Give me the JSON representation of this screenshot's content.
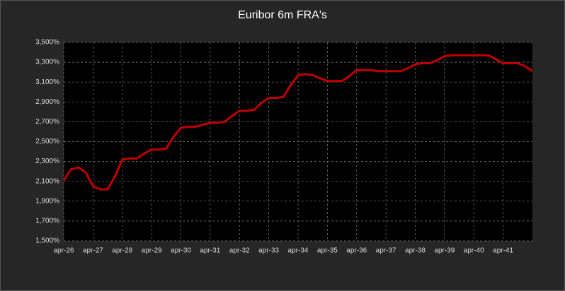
{
  "chart_data": {
    "type": "line",
    "title": "Euribor 6m FRA's",
    "categories": [
      "apr-26",
      null,
      null,
      null,
      "apr-27",
      null,
      null,
      null,
      "apr-28",
      null,
      null,
      null,
      "apr-29",
      null,
      null,
      null,
      "apr-30",
      null,
      null,
      null,
      "apr-31",
      null,
      null,
      null,
      "apr-32",
      null,
      null,
      null,
      "apr-33",
      null,
      null,
      null,
      "apr-34",
      null,
      null,
      null,
      "apr-35",
      null,
      null,
      null,
      "apr-36",
      null,
      null,
      null,
      "apr-37",
      null,
      null,
      null,
      "apr-38",
      null,
      null,
      null,
      "apr-39",
      null,
      null,
      null,
      "apr-40",
      null,
      null,
      null,
      "apr-41",
      null,
      null,
      null,
      null
    ],
    "values": [
      2.11,
      2.22,
      2.24,
      2.19,
      2.05,
      2.02,
      2.02,
      2.15,
      2.32,
      2.33,
      2.33,
      2.38,
      2.42,
      2.42,
      2.43,
      2.55,
      2.64,
      2.65,
      2.65,
      2.67,
      2.69,
      2.69,
      2.7,
      2.76,
      2.81,
      2.81,
      2.82,
      2.89,
      2.94,
      2.94,
      2.95,
      3.07,
      3.17,
      3.18,
      3.17,
      3.14,
      3.11,
      3.11,
      3.11,
      3.16,
      3.22,
      3.22,
      3.22,
      3.21,
      3.21,
      3.21,
      3.21,
      3.24,
      3.28,
      3.29,
      3.29,
      3.32,
      3.36,
      3.37,
      3.37,
      3.37,
      3.37,
      3.37,
      3.37,
      3.33,
      3.29,
      3.29,
      3.29,
      3.26,
      3.21
    ],
    "color": "#c00000",
    "ylim": [
      1.5,
      3.5
    ],
    "yticks": [
      {
        "value": 1.5,
        "label": "1,500%"
      },
      {
        "value": 1.7,
        "label": "1,700%"
      },
      {
        "value": 1.9,
        "label": "1,900%"
      },
      {
        "value": 2.1,
        "label": "2,100%"
      },
      {
        "value": 2.3,
        "label": "2,300%"
      },
      {
        "value": 2.5,
        "label": "2,500%"
      },
      {
        "value": 2.7,
        "label": "2,700%"
      },
      {
        "value": 2.9,
        "label": "2,900%"
      },
      {
        "value": 3.1,
        "label": "3,100%"
      },
      {
        "value": 3.3,
        "label": "3,300%"
      },
      {
        "value": 3.5,
        "label": "3,500%"
      }
    ],
    "grid": true
  }
}
